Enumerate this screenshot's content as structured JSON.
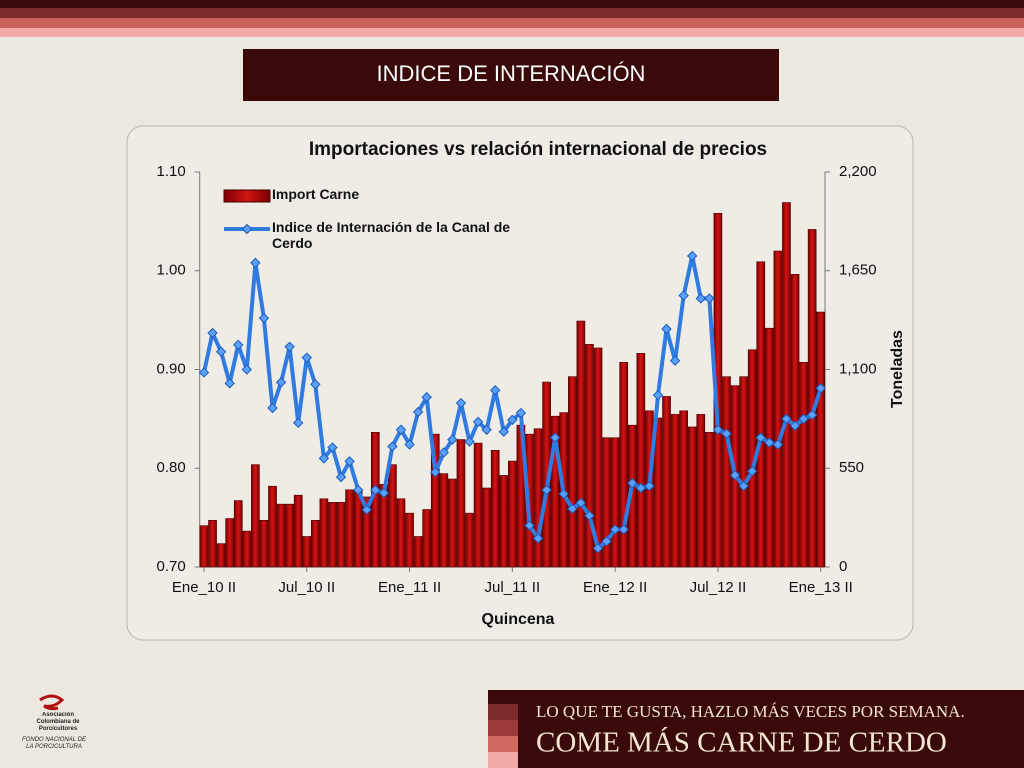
{
  "header": {
    "title": "INDICE DE INTERNACIÓN"
  },
  "chart_data": {
    "type": "bar",
    "title": "Importaciones vs relación internacional de precios",
    "x_label": "Quincena",
    "y2_label": "Toneladas",
    "categories": [
      "Ene_10 II",
      null,
      null,
      null,
      null,
      null,
      null,
      null,
      null,
      null,
      null,
      null,
      "Jul_10 II",
      null,
      null,
      null,
      null,
      null,
      null,
      null,
      null,
      null,
      null,
      null,
      "Ene_11 II",
      null,
      null,
      null,
      null,
      null,
      null,
      null,
      null,
      null,
      null,
      null,
      "Jul_11 II",
      null,
      null,
      null,
      null,
      null,
      null,
      null,
      null,
      null,
      null,
      null,
      "Ene_12 II",
      null,
      null,
      null,
      null,
      null,
      null,
      null,
      null,
      null,
      null,
      null,
      "Jul_12 II",
      null,
      null,
      null,
      null,
      null,
      null,
      null,
      null,
      null,
      null,
      null,
      "Ene_13 II"
    ],
    "series": [
      {
        "name": "Import Carne",
        "type": "bar",
        "axis": "y2",
        "color": "#c00000",
        "values": [
          230,
          260,
          130,
          270,
          370,
          200,
          570,
          260,
          450,
          350,
          350,
          400,
          170,
          260,
          380,
          360,
          360,
          430,
          430,
          390,
          750,
          460,
          570,
          380,
          300,
          170,
          320,
          740,
          520,
          490,
          710,
          300,
          690,
          440,
          650,
          510,
          590,
          790,
          740,
          770,
          1030,
          840,
          860,
          1060,
          1370,
          1240,
          1220,
          720,
          720,
          1140,
          790,
          1190,
          870,
          830,
          950,
          850,
          870,
          780,
          850,
          750,
          1970,
          1060,
          1010,
          1060,
          1210,
          1700,
          1330,
          1760,
          2030,
          1630,
          1140,
          1880,
          1420
        ]
      },
      {
        "name": "Indice de Internación de la Canal de Cerdo",
        "type": "line",
        "axis": "y",
        "color": "#2f7be0",
        "values": [
          0.897,
          0.937,
          0.918,
          0.886,
          0.925,
          0.9,
          1.008,
          0.952,
          0.861,
          0.887,
          0.923,
          0.846,
          0.912,
          0.885,
          0.81,
          0.821,
          0.791,
          0.807,
          0.778,
          0.758,
          0.778,
          0.775,
          0.822,
          0.839,
          0.824,
          0.857,
          0.872,
          0.796,
          0.816,
          0.829,
          0.866,
          0.827,
          0.847,
          0.839,
          0.879,
          0.837,
          0.849,
          0.856,
          0.742,
          0.729,
          0.778,
          0.831,
          0.774,
          0.759,
          0.765,
          0.752,
          0.719,
          0.726,
          0.738,
          0.738,
          0.785,
          0.78,
          0.782,
          0.874,
          0.941,
          0.909,
          0.975,
          1.015,
          0.972,
          0.972,
          0.839,
          0.835,
          0.793,
          0.782,
          0.797,
          0.831,
          0.826,
          0.824,
          0.85,
          0.843,
          0.85,
          0.854,
          0.881
        ]
      }
    ],
    "ylim": [
      0.7,
      1.1
    ],
    "yticks": [
      {
        "value": 0.7,
        "label": "0.70"
      },
      {
        "value": 0.8,
        "label": "0.80"
      },
      {
        "value": 0.9,
        "label": "0.90"
      },
      {
        "value": 1.0,
        "label": "1.00"
      },
      {
        "value": 1.1,
        "label": "1.10"
      }
    ],
    "y2lim": [
      0,
      2200
    ],
    "y2ticks": [
      0,
      550,
      {
        "value": 1100,
        "label": "1,100"
      },
      {
        "value": 1650,
        "label": "1,650"
      },
      {
        "value": 2200,
        "label": "2,200"
      }
    ],
    "legend": "top-left"
  },
  "banner": {
    "line1": "LO QUE TE GUSTA, HAZLO MÁS VECES POR SEMANA.",
    "line2": "COME MÁS CARNE DE CERDO"
  },
  "logo": {
    "name": "Asociación Colombiana de Porcicultores",
    "fund": "FONDO NACIONAL DE LA PORCICULTURA"
  }
}
